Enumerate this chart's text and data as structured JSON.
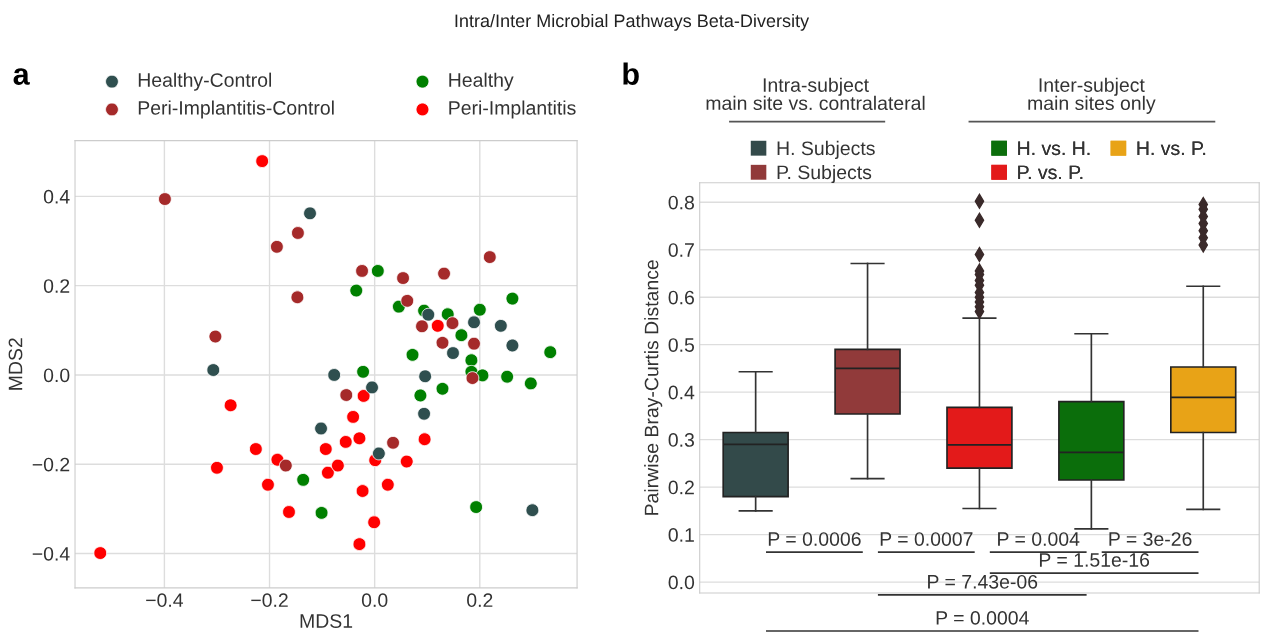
{
  "chart_data": [
    {
      "type": "scatter",
      "title": "Intra/Inter Microbial Pathways Beta-Diversity",
      "xlabel": "MDS1",
      "ylabel": "MDS2",
      "annotations": [
        "a"
      ],
      "xlim": [
        -0.57,
        0.385
      ],
      "ylim": [
        -0.477,
        0.525
      ],
      "xticks": [
        {
          "value": -0.4,
          "label": "−0.4"
        },
        {
          "value": -0.2,
          "label": "−0.2"
        },
        {
          "value": 0.0,
          "label": "0.0"
        },
        {
          "value": 0.2,
          "label": "0.2"
        }
      ],
      "yticks": [
        {
          "value": -0.4,
          "label": "−0.4"
        },
        {
          "value": -0.2,
          "label": "−0.2"
        },
        {
          "value": 0.0,
          "label": "0.0"
        },
        {
          "value": 0.2,
          "label": "0.2"
        },
        {
          "value": 0.4,
          "label": "0.4"
        }
      ],
      "grid": true,
      "legend": "top",
      "marker": "circle",
      "series": [
        {
          "name": "Healthy-Control",
          "color": "#2f4f4f",
          "x": [
            -0.123,
            -0.307,
            -0.077,
            -0.102,
            -0.005,
            0.008,
            0.102,
            0.189,
            0.24,
            0.262,
            0.149,
            0.096,
            0.094,
            0.3
          ],
          "values": [
            0.362,
            0.011,
            0.0,
            -0.12,
            -0.028,
            -0.176,
            0.135,
            0.118,
            0.11,
            0.066,
            0.049,
            -0.003,
            -0.087,
            -0.303
          ]
        },
        {
          "name": "Peri-Implantitis-Control",
          "color": "#a52a2a",
          "x": [
            -0.399,
            -0.186,
            -0.146,
            -0.147,
            -0.303,
            -0.024,
            0.054,
            0.132,
            0.219,
            0.062,
            0.09,
            0.148,
            0.129,
            0.189,
            0.186,
            -0.054,
            0.035,
            -0.169
          ],
          "values": [
            0.394,
            0.287,
            0.318,
            0.174,
            0.086,
            0.233,
            0.217,
            0.227,
            0.264,
            0.166,
            0.109,
            0.116,
            0.072,
            0.07,
            -0.007,
            -0.045,
            -0.152,
            -0.203
          ]
        },
        {
          "name": "Healthy",
          "color": "#008000",
          "x": [
            -0.035,
            0.006,
            0.046,
            0.094,
            0.139,
            0.2,
            0.262,
            0.165,
            0.072,
            0.184,
            0.184,
            0.205,
            0.252,
            0.297,
            0.334,
            0.129,
            0.087,
            -0.022,
            -0.136,
            -0.101,
            0.193
          ],
          "values": [
            0.189,
            0.233,
            0.153,
            0.144,
            0.136,
            0.146,
            0.171,
            0.089,
            0.045,
            0.033,
            0.007,
            -0.001,
            -0.004,
            -0.019,
            0.051,
            -0.031,
            -0.046,
            0.007,
            -0.235,
            -0.309,
            -0.296
          ]
        },
        {
          "name": "Peri-Implantitis",
          "color": "#ff0000",
          "x": [
            -0.214,
            -0.274,
            -0.021,
            -0.041,
            0.12,
            -0.029,
            -0.055,
            -0.093,
            -0.226,
            -0.3,
            -0.185,
            -0.203,
            -0.163,
            -0.089,
            -0.07,
            0.001,
            0.061,
            0.095,
            0.025,
            -0.023,
            -0.001,
            -0.029,
            -0.522
          ],
          "values": [
            0.479,
            -0.068,
            -0.047,
            -0.094,
            0.11,
            -0.142,
            -0.15,
            -0.166,
            -0.166,
            -0.208,
            -0.19,
            -0.246,
            -0.307,
            -0.219,
            -0.203,
            -0.191,
            -0.194,
            -0.144,
            -0.246,
            -0.26,
            -0.33,
            -0.379,
            -0.399
          ]
        }
      ]
    },
    {
      "type": "box",
      "ylabel": "Pairwise Bray-Curtis Distance",
      "categories": [
        null,
        null,
        null,
        null,
        null
      ],
      "annotations": [
        "b",
        "Intra-subject\nmain site vs. contralateral",
        "Inter-subject\nmain sites only",
        "P = 0.0006",
        "P = 0.0007",
        "P = 0.004",
        "P = 3e-26",
        "P = 1.51e-16",
        "P = 7.43e-06",
        "P = 0.0004"
      ],
      "ylim": [
        -0.023,
        0.841
      ],
      "yticks": [
        {
          "value": 0.0,
          "label": "0.0"
        },
        {
          "value": 0.1,
          "label": "0.1"
        },
        {
          "value": 0.2,
          "label": "0.2"
        },
        {
          "value": 0.3,
          "label": "0.3"
        },
        {
          "value": 0.4,
          "label": "0.4"
        },
        {
          "value": 0.5,
          "label": "0.5"
        },
        {
          "value": 0.6,
          "label": "0.6"
        },
        {
          "value": 0.7,
          "label": "0.7"
        },
        {
          "value": 0.8,
          "label": "0.8"
        }
      ],
      "grid": "y",
      "legend": "top",
      "series": [
        {
          "name": "H. Subjects",
          "color": "#334a4a",
          "boxes": [
            {
              "low": 0.15,
              "q1": 0.18,
              "median": 0.29,
              "q3": 0.315,
              "high": 0.443
            },
            null,
            null,
            null,
            null
          ]
        },
        {
          "name": "P. Subjects",
          "color": "#913a3a",
          "boxes": [
            null,
            {
              "low": 0.218,
              "q1": 0.354,
              "median": 0.45,
              "q3": 0.49,
              "high": 0.671
            },
            null,
            null,
            null
          ]
        },
        {
          "name": "P. vs. P.",
          "color": "#e31a1a",
          "boxes": [
            null,
            null,
            {
              "low": 0.155,
              "q1": 0.24,
              "median": 0.289,
              "q3": 0.368,
              "high": 0.556,
              "outliers": [
                0.802,
                0.762,
                0.69,
                0.655,
                0.648,
                0.635,
                0.625,
                0.61,
                0.6,
                0.59,
                0.58,
                0.57
              ]
            },
            null,
            null
          ]
        },
        {
          "name": "H. vs. H.",
          "color": "#0b6e0b",
          "boxes": [
            null,
            null,
            null,
            {
              "low": 0.112,
              "q1": 0.215,
              "median": 0.273,
              "q3": 0.38,
              "high": 0.523
            },
            null
          ]
        },
        {
          "name": "H. vs. P.",
          "color": "#e8a317",
          "boxes": [
            null,
            null,
            null,
            null,
            {
              "low": 0.153,
              "q1": 0.315,
              "median": 0.389,
              "q3": 0.453,
              "high": 0.623,
              "outliers": [
                0.795,
                0.785,
                0.77,
                0.755,
                0.74,
                0.725,
                0.71
              ]
            }
          ]
        }
      ]
    }
  ]
}
